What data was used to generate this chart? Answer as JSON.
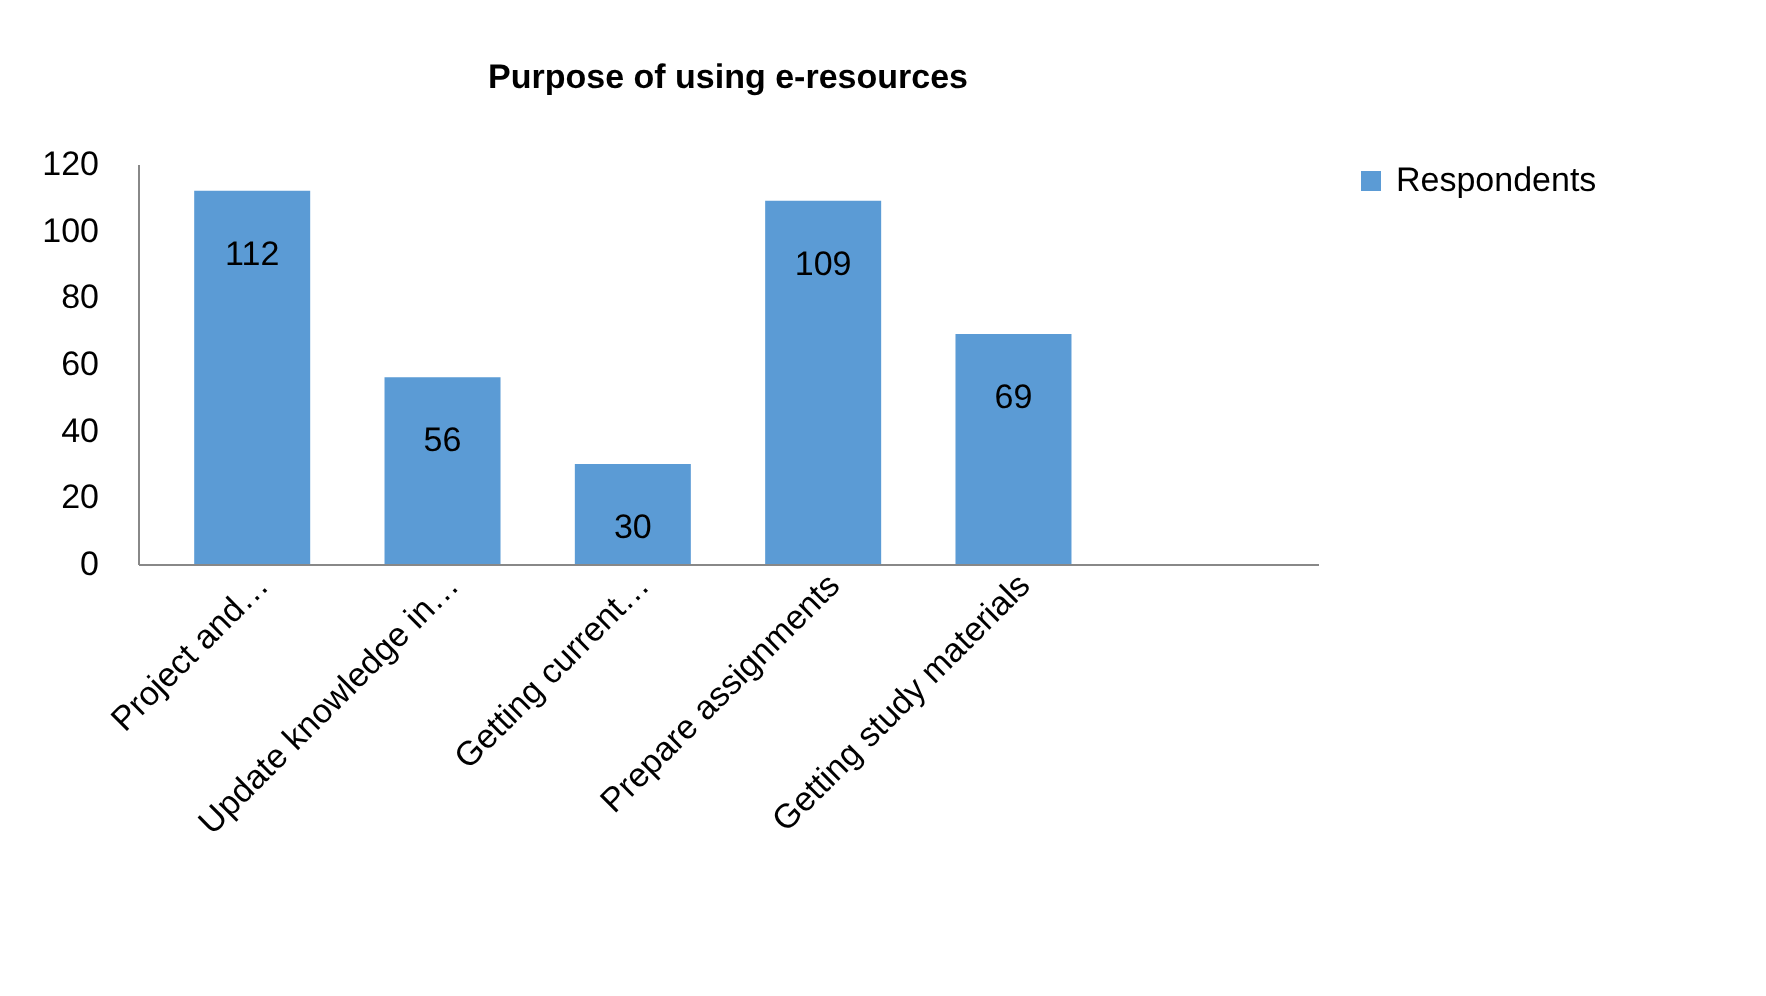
{
  "chart_data": {
    "type": "bar",
    "title": "Purpose of using e-resources",
    "categories": [
      "Project and…",
      "Update knowledge in…",
      "Getting current…",
      "Prepare assignments",
      "Getting study materials"
    ],
    "series": [
      {
        "name": "Respondents",
        "color": "#5b9bd5",
        "values": [
          112,
          56,
          30,
          109,
          69
        ]
      }
    ],
    "ylim": [
      0,
      120
    ],
    "yticks": [
      0,
      20,
      40,
      60,
      80,
      100,
      120
    ],
    "grid": false,
    "legend": "right",
    "data_labels": true
  }
}
